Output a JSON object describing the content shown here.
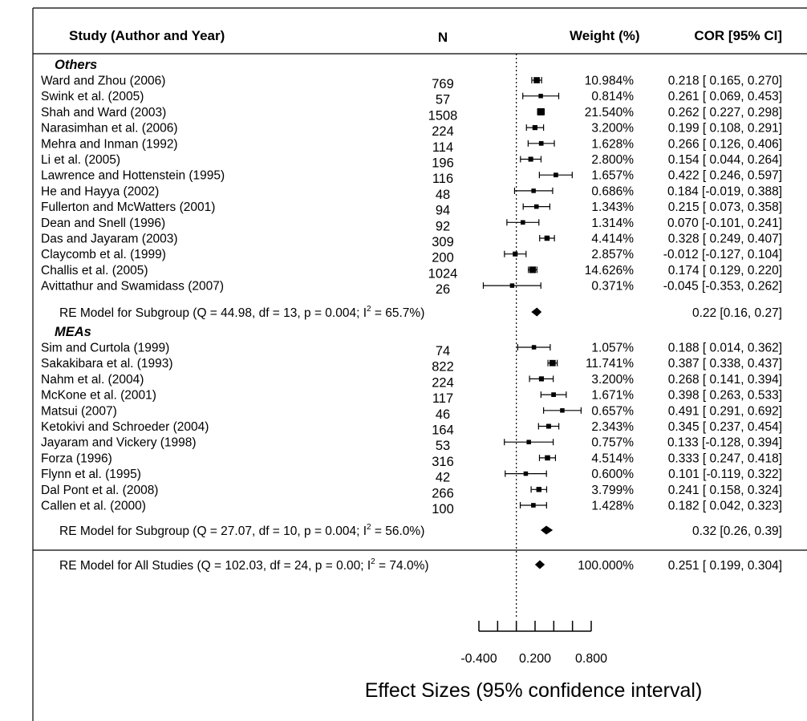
{
  "chart_data": {
    "type": "forest",
    "headers": {
      "study": "Study (Author and Year)",
      "n": "N",
      "weight": "Weight (%)",
      "ci": "COR [95% CI]"
    },
    "xlabel": "Effect Sizes (95% confidence interval)",
    "xticks": [
      -0.4,
      -0.2,
      0.0,
      0.2,
      0.4,
      0.6,
      0.8
    ],
    "xtick_labels": [
      "-0.400",
      "0.200",
      "0.800"
    ],
    "xtick_label_values": [
      -0.4,
      0.2,
      0.8
    ],
    "xlim": [
      -0.4,
      0.8
    ],
    "reference_line": 0,
    "groups": [
      {
        "name": "Others",
        "studies": [
          {
            "study": "Ward and Zhou (2006)",
            "n": "769",
            "weight": "10.984%",
            "ci": "0.218 [ 0.165, 0.270]",
            "est": 0.218,
            "lo": 0.165,
            "hi": 0.27
          },
          {
            "study": "Swink et al. (2005)",
            "n": "57",
            "weight": "0.814%",
            "ci": "0.261 [ 0.069, 0.453]",
            "est": 0.261,
            "lo": 0.069,
            "hi": 0.453
          },
          {
            "study": "Shah and Ward (2003)",
            "n": "1508",
            "weight": "21.540%",
            "ci": "0.262 [ 0.227, 0.298]",
            "est": 0.262,
            "lo": 0.227,
            "hi": 0.298
          },
          {
            "study": "Narasimhan et al. (2006)",
            "n": "224",
            "weight": "3.200%",
            "ci": "0.199 [ 0.108, 0.291]",
            "est": 0.199,
            "lo": 0.108,
            "hi": 0.291
          },
          {
            "study": "Mehra and Inman (1992)",
            "n": "114",
            "weight": "1.628%",
            "ci": "0.266 [ 0.126, 0.406]",
            "est": 0.266,
            "lo": 0.126,
            "hi": 0.406
          },
          {
            "study": "Li et al. (2005)",
            "n": "196",
            "weight": "2.800%",
            "ci": "0.154 [ 0.044, 0.264]",
            "est": 0.154,
            "lo": 0.044,
            "hi": 0.264
          },
          {
            "study": "Lawrence and Hottenstein (1995)",
            "n": "116",
            "weight": "1.657%",
            "ci": "0.422 [ 0.246, 0.597]",
            "est": 0.422,
            "lo": 0.246,
            "hi": 0.597
          },
          {
            "study": "He and Hayya (2002)",
            "n": "48",
            "weight": "0.686%",
            "ci": "0.184 [-0.019, 0.388]",
            "est": 0.184,
            "lo": -0.019,
            "hi": 0.388
          },
          {
            "study": "Fullerton and McWatters (2001)",
            "n": "94",
            "weight": "1.343%",
            "ci": "0.215 [ 0.073, 0.358]",
            "est": 0.215,
            "lo": 0.073,
            "hi": 0.358
          },
          {
            "study": "Dean and Snell (1996)",
            "n": "92",
            "weight": "1.314%",
            "ci": "0.070 [-0.101, 0.241]",
            "est": 0.07,
            "lo": -0.101,
            "hi": 0.241
          },
          {
            "study": "Das and Jayaram (2003)",
            "n": "309",
            "weight": "4.414%",
            "ci": "0.328 [ 0.249, 0.407]",
            "est": 0.328,
            "lo": 0.249,
            "hi": 0.407
          },
          {
            "study": "Claycomb et al. (1999)",
            "n": "200",
            "weight": "2.857%",
            "ci": "-0.012 [-0.127, 0.104]",
            "est": -0.012,
            "lo": -0.127,
            "hi": 0.104
          },
          {
            "study": "Challis et al. (2005)",
            "n": "1024",
            "weight": "14.626%",
            "ci": "0.174 [ 0.129, 0.220]",
            "est": 0.174,
            "lo": 0.129,
            "hi": 0.22
          },
          {
            "study": "Avittathur and Swamidass (2007)",
            "n": "26",
            "weight": "0.371%",
            "ci": "-0.045 [-0.353, 0.262]",
            "est": -0.045,
            "lo": -0.353,
            "hi": 0.262
          }
        ],
        "summary": {
          "label_main": "RE Model for Subgroup (Q = 44.98, df = 13, p = 0.004; I",
          "label_sup": "2",
          "label_tail": " = 65.7%)",
          "ci": "0.22 [0.16, 0.27]",
          "est": 0.22,
          "lo": 0.16,
          "hi": 0.27
        }
      },
      {
        "name": "MEAs",
        "studies": [
          {
            "study": "Sim and Curtola (1999)",
            "n": "74",
            "weight": "1.057%",
            "ci": "0.188 [ 0.014, 0.362]",
            "est": 0.188,
            "lo": 0.014,
            "hi": 0.362
          },
          {
            "study": "Sakakibara et al. (1993)",
            "n": "822",
            "weight": "11.741%",
            "ci": "0.387 [ 0.338, 0.437]",
            "est": 0.387,
            "lo": 0.338,
            "hi": 0.437
          },
          {
            "study": "Nahm et al. (2004)",
            "n": "224",
            "weight": "3.200%",
            "ci": "0.268 [ 0.141, 0.394]",
            "est": 0.268,
            "lo": 0.141,
            "hi": 0.394
          },
          {
            "study": "McKone et al. (2001)",
            "n": "117",
            "weight": "1.671%",
            "ci": "0.398 [ 0.263, 0.533]",
            "est": 0.398,
            "lo": 0.263,
            "hi": 0.533
          },
          {
            "study": "Matsui (2007)",
            "n": "46",
            "weight": "0.657%",
            "ci": "0.491 [ 0.291, 0.692]",
            "est": 0.491,
            "lo": 0.291,
            "hi": 0.692
          },
          {
            "study": "Ketokivi and Schroeder (2004)",
            "n": "164",
            "weight": "2.343%",
            "ci": "0.345 [ 0.237, 0.454]",
            "est": 0.345,
            "lo": 0.237,
            "hi": 0.454
          },
          {
            "study": "Jayaram and Vickery (1998)",
            "n": "53",
            "weight": "0.757%",
            "ci": "0.133 [-0.128, 0.394]",
            "est": 0.133,
            "lo": -0.128,
            "hi": 0.394
          },
          {
            "study": "Forza (1996)",
            "n": "316",
            "weight": "4.514%",
            "ci": "0.333 [ 0.247, 0.418]",
            "est": 0.333,
            "lo": 0.247,
            "hi": 0.418
          },
          {
            "study": "Flynn et al. (1995)",
            "n": "42",
            "weight": "0.600%",
            "ci": "0.101 [-0.119, 0.322]",
            "est": 0.101,
            "lo": -0.119,
            "hi": 0.322
          },
          {
            "study": "Dal Pont et al. (2008)",
            "n": "266",
            "weight": "3.799%",
            "ci": "0.241 [ 0.158, 0.324]",
            "est": 0.241,
            "lo": 0.158,
            "hi": 0.324
          },
          {
            "study": "Callen et al. (2000)",
            "n": "100",
            "weight": "1.428%",
            "ci": "0.182 [ 0.042, 0.323]",
            "est": 0.182,
            "lo": 0.042,
            "hi": 0.323
          }
        ],
        "summary": {
          "label_main": "RE Model for Subgroup (Q = 27.07, df = 10, p = 0.004; I",
          "label_sup": "2",
          "label_tail": " = 56.0%)",
          "ci": "0.32 [0.26, 0.39]",
          "est": 0.32,
          "lo": 0.26,
          "hi": 0.39
        }
      }
    ],
    "overall": {
      "label_main": "RE Model for All Studies (Q = 102.03, df = 24, p = 0.00; I",
      "label_sup": "2",
      "label_tail": " = 74.0%)",
      "weight": "100.000%",
      "ci": "0.251 [ 0.199, 0.304]",
      "est": 0.251,
      "lo": 0.199,
      "hi": 0.304
    }
  }
}
